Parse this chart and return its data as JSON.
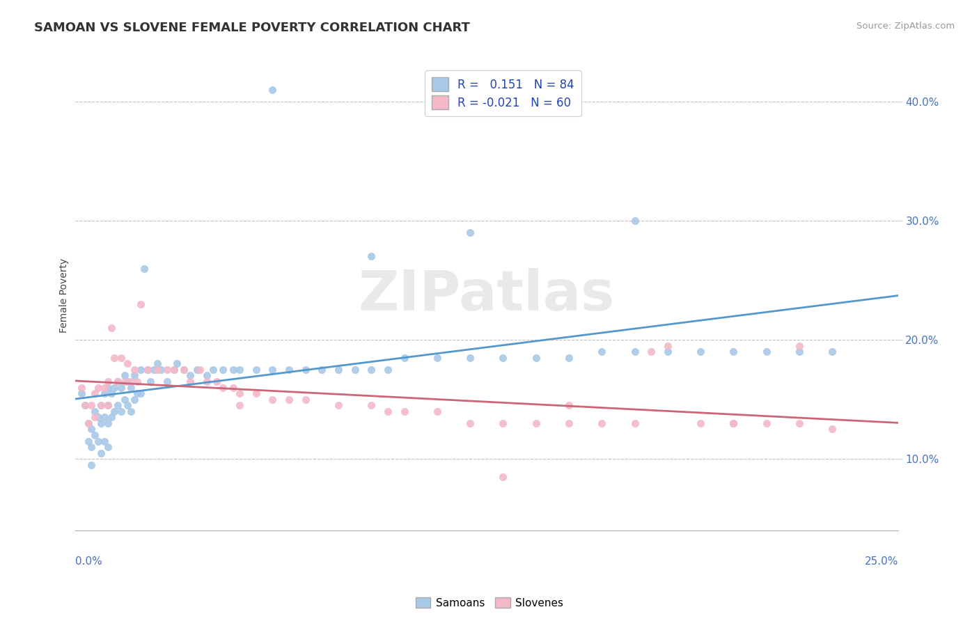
{
  "title": "SAMOAN VS SLOVENE FEMALE POVERTY CORRELATION CHART",
  "source_text": "Source: ZipAtlas.com",
  "ylabel": "Female Poverty",
  "xlim": [
    0.0,
    0.25
  ],
  "ylim": [
    0.04,
    0.435
  ],
  "yticks": [
    0.1,
    0.2,
    0.3,
    0.4
  ],
  "ytick_labels": [
    "10.0%",
    "20.0%",
    "30.0%",
    "40.0%"
  ],
  "samoan_color": "#a8c8e8",
  "slovene_color": "#f4b8c8",
  "samoan_line_color": "#5599cc",
  "slovene_line_color": "#cc6677",
  "watermark_text": "ZIPatlas",
  "bottom_legend_samoan": "Samoans",
  "bottom_legend_slovene": "Slovenes",
  "legend_line1": "R =   0.151   N = 84",
  "legend_line2": "R = -0.021   N = 60",
  "samoan_x": [
    0.002,
    0.003,
    0.004,
    0.004,
    0.005,
    0.005,
    0.005,
    0.006,
    0.006,
    0.007,
    0.007,
    0.008,
    0.008,
    0.008,
    0.009,
    0.009,
    0.009,
    0.01,
    0.01,
    0.01,
    0.01,
    0.011,
    0.011,
    0.012,
    0.012,
    0.013,
    0.013,
    0.014,
    0.014,
    0.015,
    0.015,
    0.016,
    0.016,
    0.017,
    0.017,
    0.018,
    0.018,
    0.019,
    0.02,
    0.02,
    0.021,
    0.022,
    0.023,
    0.024,
    0.025,
    0.026,
    0.028,
    0.03,
    0.031,
    0.033,
    0.035,
    0.037,
    0.04,
    0.042,
    0.045,
    0.048,
    0.05,
    0.055,
    0.06,
    0.065,
    0.07,
    0.075,
    0.08,
    0.085,
    0.09,
    0.095,
    0.1,
    0.11,
    0.12,
    0.13,
    0.14,
    0.15,
    0.16,
    0.17,
    0.18,
    0.19,
    0.2,
    0.21,
    0.22,
    0.23,
    0.12,
    0.17,
    0.06,
    0.09
  ],
  "samoan_y": [
    0.155,
    0.145,
    0.13,
    0.115,
    0.125,
    0.11,
    0.095,
    0.14,
    0.12,
    0.135,
    0.115,
    0.145,
    0.13,
    0.105,
    0.155,
    0.135,
    0.115,
    0.16,
    0.145,
    0.13,
    0.11,
    0.155,
    0.135,
    0.16,
    0.14,
    0.165,
    0.145,
    0.16,
    0.14,
    0.17,
    0.15,
    0.165,
    0.145,
    0.16,
    0.14,
    0.17,
    0.15,
    0.155,
    0.175,
    0.155,
    0.26,
    0.175,
    0.165,
    0.175,
    0.18,
    0.175,
    0.165,
    0.175,
    0.18,
    0.175,
    0.17,
    0.175,
    0.17,
    0.175,
    0.175,
    0.175,
    0.175,
    0.175,
    0.175,
    0.175,
    0.175,
    0.175,
    0.175,
    0.175,
    0.175,
    0.175,
    0.185,
    0.185,
    0.185,
    0.185,
    0.185,
    0.185,
    0.19,
    0.19,
    0.19,
    0.19,
    0.19,
    0.19,
    0.19,
    0.19,
    0.29,
    0.3,
    0.41,
    0.27
  ],
  "slovene_x": [
    0.002,
    0.003,
    0.004,
    0.005,
    0.006,
    0.006,
    0.007,
    0.008,
    0.009,
    0.01,
    0.01,
    0.011,
    0.012,
    0.013,
    0.014,
    0.015,
    0.016,
    0.017,
    0.018,
    0.019,
    0.02,
    0.022,
    0.025,
    0.028,
    0.03,
    0.033,
    0.035,
    0.038,
    0.04,
    0.043,
    0.045,
    0.048,
    0.05,
    0.055,
    0.06,
    0.065,
    0.07,
    0.08,
    0.09,
    0.095,
    0.1,
    0.11,
    0.12,
    0.13,
    0.14,
    0.15,
    0.16,
    0.17,
    0.175,
    0.18,
    0.19,
    0.2,
    0.21,
    0.22,
    0.23,
    0.05,
    0.13,
    0.15,
    0.2,
    0.22
  ],
  "slovene_y": [
    0.16,
    0.145,
    0.13,
    0.145,
    0.155,
    0.135,
    0.16,
    0.145,
    0.16,
    0.165,
    0.145,
    0.21,
    0.185,
    0.165,
    0.185,
    0.165,
    0.18,
    0.165,
    0.175,
    0.165,
    0.23,
    0.175,
    0.175,
    0.175,
    0.175,
    0.175,
    0.165,
    0.175,
    0.165,
    0.165,
    0.16,
    0.16,
    0.155,
    0.155,
    0.15,
    0.15,
    0.15,
    0.145,
    0.145,
    0.14,
    0.14,
    0.14,
    0.13,
    0.13,
    0.13,
    0.13,
    0.13,
    0.13,
    0.19,
    0.195,
    0.13,
    0.13,
    0.13,
    0.13,
    0.125,
    0.145,
    0.085,
    0.145,
    0.13,
    0.195
  ]
}
